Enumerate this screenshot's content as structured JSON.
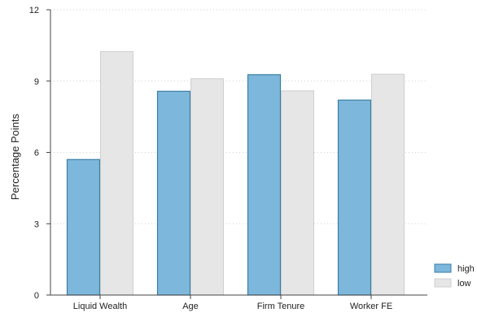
{
  "chart_data": {
    "type": "bar",
    "title": "",
    "xlabel": "",
    "ylabel": "Percentage Points",
    "ylim": [
      0,
      12
    ],
    "yticks": [
      0,
      3,
      6,
      9,
      12
    ],
    "yticklabels": [
      "0",
      "3",
      "6",
      "9",
      "12"
    ],
    "grid": "horizontal dotted",
    "legend_position": "bottom-right",
    "categories": [
      "Liquid Wealth",
      "Age",
      "Firm Tenure",
      "Worker FE"
    ],
    "series": [
      {
        "name": "high",
        "values": [
          5.7,
          8.57,
          9.27,
          8.2
        ],
        "color": "#7db7db",
        "stroke": "#3a7ea4"
      },
      {
        "name": "low",
        "values": [
          10.24,
          9.1,
          8.59,
          9.29
        ],
        "color": "#e6e6e6",
        "stroke": "#cfcfcf"
      }
    ]
  }
}
